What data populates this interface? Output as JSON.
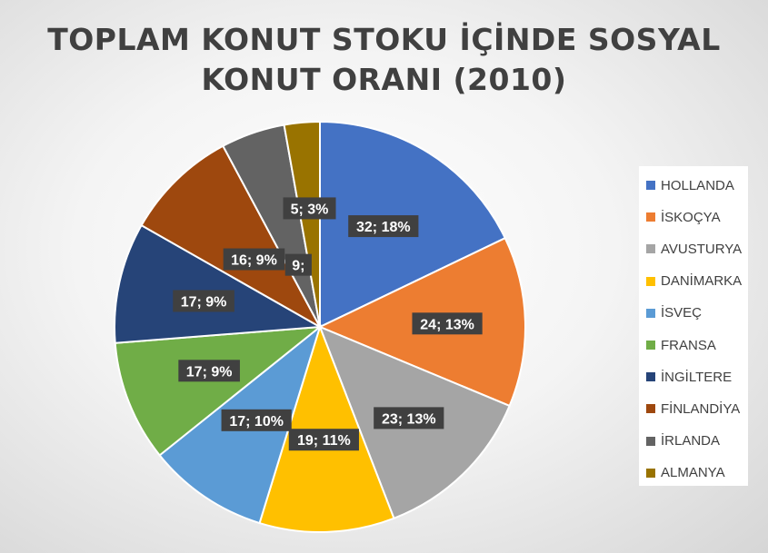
{
  "chart_data": {
    "type": "pie",
    "title_lines": [
      "TOPLAM KONUT STOKU İÇİNDE SOSYAL",
      "KONUT ORANI (2010)"
    ],
    "legend_position": "right",
    "slices": [
      {
        "name": "HOLLANDA",
        "value": 32,
        "percent": "18%",
        "label": "32; 18%",
        "color": "#4472c4"
      },
      {
        "name": "İSKOÇYA",
        "value": 24,
        "percent": "13%",
        "label": "24; 13%",
        "color": "#ed7d31"
      },
      {
        "name": "AVUSTURYA",
        "value": 23,
        "percent": "13%",
        "label": "23; 13%",
        "color": "#a5a5a5"
      },
      {
        "name": "DANİMARKA",
        "value": 19,
        "percent": "11%",
        "label": "19; 11%",
        "color": "#ffc000"
      },
      {
        "name": "İSVEÇ",
        "value": 17,
        "percent": "10%",
        "label": "17; 10%",
        "color": "#5b9bd5"
      },
      {
        "name": "FRANSA",
        "value": 17,
        "percent": "9%",
        "label": "17; 9%",
        "color": "#70ad47"
      },
      {
        "name": "İNGİLTERE",
        "value": 17,
        "percent": "9%",
        "label": "17; 9%",
        "color": "#264478"
      },
      {
        "name": "FİNLANDİYA",
        "value": 16,
        "percent": "9%",
        "label": "16; 9%",
        "color": "#9e480e"
      },
      {
        "name": "İRLANDA",
        "value": 9,
        "percent": "5%",
        "label": "9;",
        "color": "#636363"
      },
      {
        "name": "ALMANYA",
        "value": 5,
        "percent": "3%",
        "label": "5; 3%",
        "color": "#997300"
      }
    ]
  }
}
